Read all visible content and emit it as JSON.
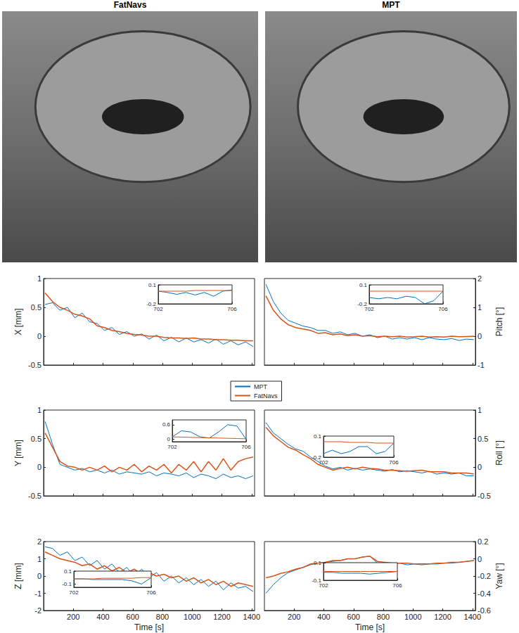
{
  "images": [
    {
      "title": "FatNavs"
    },
    {
      "title": "MPT"
    }
  ],
  "chart_data": [
    {
      "type": "line",
      "ylabel": "X [mm]",
      "legend": "center",
      "grid": false,
      "tick_labels": "y",
      "xlim": [
        0,
        1420
      ],
      "xticks": [
        200,
        400,
        600,
        800,
        1000,
        1200,
        1400
      ],
      "ylim": [
        -0.5,
        1
      ],
      "yticks": [
        -0.5,
        0,
        0.5,
        1
      ],
      "x": [
        10,
        60,
        110,
        160,
        210,
        260,
        310,
        360,
        410,
        460,
        510,
        560,
        610,
        660,
        710,
        760,
        810,
        860,
        910,
        960,
        1010,
        1060,
        1110,
        1160,
        1210,
        1260,
        1310,
        1360,
        1410
      ],
      "series": [
        {
          "name": "MPT",
          "color": "#0072BD",
          "values": [
            0.55,
            0.58,
            0.45,
            0.5,
            0.32,
            0.4,
            0.25,
            0.22,
            0.1,
            0.15,
            0.03,
            0.08,
            0.0,
            0.04,
            -0.05,
            0.02,
            -0.08,
            -0.02,
            -0.1,
            -0.03,
            -0.1,
            -0.06,
            -0.12,
            -0.05,
            -0.14,
            -0.08,
            -0.15,
            -0.1,
            -0.18
          ]
        },
        {
          "name": "FatNavs",
          "color": "#D95319",
          "values": [
            0.75,
            0.6,
            0.5,
            0.45,
            0.38,
            0.35,
            0.3,
            0.18,
            0.15,
            0.1,
            0.08,
            0.05,
            0.03,
            0.02,
            0.0,
            0.0,
            -0.02,
            -0.03,
            -0.03,
            -0.04,
            -0.03,
            -0.05,
            -0.05,
            -0.06,
            -0.06,
            -0.07,
            -0.07,
            -0.08,
            -0.08
          ]
        }
      ],
      "inset": {
        "xlim": [
          702,
          706
        ],
        "xticks": [
          702,
          706
        ],
        "ylim": [
          -0.2,
          0.1
        ],
        "yticks": [
          -0.2,
          0.1
        ],
        "x": [
          702,
          702.5,
          703,
          703.5,
          704,
          704.5,
          705,
          705.5,
          706
        ],
        "series": [
          {
            "name": "MPT",
            "color": "#0072BD",
            "values": [
              0.0,
              -0.02,
              -0.05,
              -0.02,
              -0.06,
              -0.02,
              -0.08,
              0.0,
              0.02
            ]
          },
          {
            "name": "FatNavs",
            "color": "#D95319",
            "values": [
              0.0,
              0.0,
              0.0,
              0.0,
              0.01,
              0.01,
              0.01,
              0.01,
              0.01
            ]
          }
        ]
      }
    },
    {
      "type": "line",
      "ylabel": "Pitch [°]",
      "grid": false,
      "tick_labels": "y",
      "xlim": [
        0,
        1420
      ],
      "xticks": [
        200,
        400,
        600,
        800,
        1000,
        1200,
        1400
      ],
      "ylim": [
        -1,
        2
      ],
      "yticks": [
        -1,
        0,
        1,
        2
      ],
      "x": [
        10,
        60,
        110,
        160,
        210,
        260,
        310,
        360,
        410,
        460,
        510,
        560,
        610,
        660,
        710,
        760,
        810,
        860,
        910,
        960,
        1010,
        1060,
        1110,
        1160,
        1210,
        1260,
        1310,
        1360,
        1410
      ],
      "series": [
        {
          "name": "MPT",
          "color": "#0072BD",
          "values": [
            1.8,
            1.2,
            0.8,
            0.55,
            0.45,
            0.35,
            0.3,
            0.2,
            0.2,
            0.1,
            0.15,
            0.05,
            0.1,
            0.0,
            0.05,
            -0.05,
            0.0,
            -0.1,
            -0.05,
            -0.1,
            -0.05,
            -0.12,
            -0.05,
            -0.1,
            -0.12,
            -0.08,
            -0.15,
            -0.1,
            -0.12
          ]
        },
        {
          "name": "FatNavs",
          "color": "#D95319",
          "values": [
            1.4,
            0.9,
            0.6,
            0.4,
            0.3,
            0.25,
            0.2,
            0.1,
            0.12,
            0.05,
            0.08,
            0.02,
            0.05,
            0.0,
            0.02,
            -0.02,
            0.0,
            -0.02,
            0.0,
            -0.03,
            -0.02,
            0.0,
            -0.03,
            -0.02,
            -0.03,
            0.0,
            -0.02,
            -0.01,
            0.0
          ]
        }
      ],
      "inset": {
        "xlim": [
          702,
          706
        ],
        "xticks": [
          702,
          706
        ],
        "ylim": [
          -0.2,
          0.1
        ],
        "yticks": [
          -0.2,
          0.1
        ],
        "x": [
          702,
          702.5,
          703,
          703.5,
          704,
          704.5,
          705,
          705.5,
          706
        ],
        "series": [
          {
            "name": "MPT",
            "color": "#0072BD",
            "values": [
              -0.1,
              -0.12,
              -0.1,
              -0.12,
              -0.08,
              -0.1,
              -0.2,
              -0.15,
              0.0
            ]
          },
          {
            "name": "FatNavs",
            "color": "#D95319",
            "values": [
              0.0,
              0.0,
              0.0,
              0.0,
              0.0,
              0.0,
              0.0,
              0.0,
              0.0
            ]
          }
        ]
      }
    },
    {
      "type": "line",
      "ylabel": "Y [mm]",
      "grid": false,
      "tick_labels": "y",
      "xlim": [
        0,
        1420
      ],
      "xticks": [
        200,
        400,
        600,
        800,
        1000,
        1200,
        1400
      ],
      "ylim": [
        -0.5,
        1
      ],
      "yticks": [
        -0.5,
        0,
        0.5,
        1
      ],
      "x": [
        10,
        60,
        110,
        160,
        210,
        260,
        310,
        360,
        410,
        460,
        510,
        560,
        610,
        660,
        710,
        760,
        810,
        860,
        910,
        960,
        1010,
        1060,
        1110,
        1160,
        1210,
        1260,
        1310,
        1360,
        1410
      ],
      "series": [
        {
          "name": "MPT",
          "color": "#0072BD",
          "values": [
            0.8,
            0.4,
            0.05,
            0.0,
            -0.05,
            -0.02,
            -0.08,
            -0.05,
            -0.1,
            -0.05,
            -0.12,
            -0.08,
            -0.1,
            -0.12,
            -0.08,
            -0.15,
            -0.1,
            -0.12,
            -0.15,
            -0.1,
            -0.18,
            -0.12,
            -0.15,
            -0.2,
            -0.12,
            -0.18,
            -0.15,
            -0.2,
            -0.15
          ]
        },
        {
          "name": "FatNavs",
          "color": "#D95319",
          "values": [
            0.6,
            0.35,
            0.1,
            0.02,
            0.0,
            -0.05,
            0.0,
            -0.05,
            0.02,
            -0.08,
            0.0,
            -0.05,
            0.05,
            -0.08,
            0.02,
            -0.05,
            0.05,
            -0.1,
            0.05,
            -0.05,
            0.1,
            -0.08,
            0.1,
            -0.05,
            0.15,
            -0.05,
            0.1,
            0.15,
            0.18
          ]
        }
      ],
      "inset": {
        "xlim": [
          702,
          706
        ],
        "xticks": [
          702,
          706
        ],
        "ylim": [
          -0.1,
          0.8
        ],
        "yticks": [
          0,
          0.6
        ],
        "x": [
          702,
          702.5,
          703,
          703.5,
          704,
          704.5,
          705,
          705.5,
          706
        ],
        "series": [
          {
            "name": "MPT",
            "color": "#0072BD",
            "values": [
              0.1,
              0.35,
              0.3,
              0.1,
              0.05,
              0.3,
              0.6,
              0.55,
              0.0
            ]
          },
          {
            "name": "FatNavs",
            "color": "#D95319",
            "values": [
              0.1,
              0.09,
              0.08,
              0.07,
              0.06,
              0.05,
              0.04,
              0.03,
              0.02
            ]
          }
        ]
      }
    },
    {
      "type": "line",
      "ylabel": "Roll [°]",
      "grid": false,
      "tick_labels": "y",
      "xlim": [
        0,
        1420
      ],
      "xticks": [
        200,
        400,
        600,
        800,
        1000,
        1200,
        1400
      ],
      "ylim": [
        -0.5,
        1
      ],
      "yticks": [
        -0.5,
        0,
        0.5,
        1
      ],
      "x": [
        10,
        60,
        110,
        160,
        210,
        260,
        310,
        360,
        410,
        460,
        510,
        560,
        610,
        660,
        710,
        760,
        810,
        860,
        910,
        960,
        1010,
        1060,
        1110,
        1160,
        1210,
        1260,
        1310,
        1360,
        1410
      ],
      "series": [
        {
          "name": "MPT",
          "color": "#0072BD",
          "values": [
            0.78,
            0.6,
            0.5,
            0.4,
            0.32,
            0.28,
            0.18,
            0.1,
            0.02,
            -0.03,
            0.0,
            -0.05,
            -0.02,
            -0.05,
            -0.03,
            -0.05,
            -0.07,
            -0.04,
            -0.08,
            -0.06,
            -0.08,
            -0.1,
            -0.07,
            -0.12,
            -0.1,
            -0.12,
            -0.1,
            -0.15,
            -0.15
          ]
        },
        {
          "name": "FatNavs",
          "color": "#D95319",
          "values": [
            0.7,
            0.55,
            0.45,
            0.35,
            0.3,
            0.22,
            0.15,
            0.05,
            0.0,
            -0.05,
            -0.02,
            0.0,
            -0.03,
            0.0,
            -0.02,
            -0.03,
            -0.05,
            -0.05,
            -0.06,
            -0.07,
            -0.06,
            -0.05,
            -0.08,
            -0.08,
            -0.08,
            -0.1,
            -0.1,
            -0.1,
            -0.12
          ]
        }
      ],
      "inset": {
        "xlim": [
          702,
          706
        ],
        "xticks": [
          702,
          706
        ],
        "ylim": [
          -0.2,
          0.1
        ],
        "yticks": [
          -0.2,
          0.1
        ],
        "x": [
          702,
          702.5,
          703,
          703.5,
          704,
          704.5,
          705,
          705.5,
          706
        ],
        "series": [
          {
            "name": "MPT",
            "color": "#0072BD",
            "values": [
              -0.15,
              -0.1,
              -0.15,
              -0.12,
              -0.05,
              -0.05,
              -0.15,
              -0.12,
              0.0
            ]
          },
          {
            "name": "FatNavs",
            "color": "#D95319",
            "values": [
              0.02,
              0.02,
              0.02,
              0.01,
              0.01,
              0.01,
              0.0,
              0.0,
              0.0
            ]
          }
        ]
      }
    },
    {
      "type": "line",
      "ylabel": "Z [mm]",
      "xlabel": "Time [s]",
      "grid": false,
      "xlim": [
        0,
        1420
      ],
      "xticks": [
        200,
        400,
        600,
        800,
        1000,
        1200,
        1400
      ],
      "ylim": [
        -2,
        2
      ],
      "yticks": [
        -2,
        -1,
        0,
        1,
        2
      ],
      "x": [
        10,
        60,
        110,
        160,
        210,
        260,
        310,
        360,
        410,
        460,
        510,
        560,
        610,
        660,
        710,
        760,
        810,
        860,
        910,
        960,
        1010,
        1060,
        1110,
        1160,
        1210,
        1260,
        1310,
        1360,
        1410
      ],
      "series": [
        {
          "name": "MPT",
          "color": "#0072BD",
          "values": [
            1.7,
            1.6,
            1.2,
            1.4,
            0.9,
            1.1,
            0.6,
            0.9,
            0.4,
            0.7,
            0.2,
            0.5,
            0.0,
            0.4,
            -0.1,
            0.2,
            -0.3,
            0.0,
            -0.4,
            -0.1,
            -0.5,
            -0.2,
            -0.6,
            -0.3,
            -0.8,
            -0.4,
            -0.7,
            -0.6,
            -0.9
          ]
        },
        {
          "name": "FatNavs",
          "color": "#D95319",
          "values": [
            1.4,
            1.2,
            1.0,
            0.9,
            0.8,
            0.6,
            0.7,
            0.4,
            0.6,
            0.3,
            0.5,
            0.2,
            0.4,
            0.1,
            0.2,
            0.0,
            0.1,
            -0.1,
            0.0,
            -0.3,
            -0.1,
            -0.4,
            -0.2,
            -0.5,
            -0.3,
            -0.6,
            -0.4,
            -0.5,
            -0.6
          ]
        }
      ],
      "inset": {
        "xlim": [
          702,
          706
        ],
        "xticks": [
          702,
          706
        ],
        "ylim": [
          -0.15,
          0.1
        ],
        "yticks": [
          -0.1,
          0.1
        ],
        "x": [
          702,
          702.5,
          703,
          703.5,
          704,
          704.5,
          705,
          705.5,
          706
        ],
        "series": [
          {
            "name": "MPT",
            "color": "#0072BD",
            "values": [
              -0.02,
              -0.02,
              -0.03,
              -0.03,
              -0.03,
              -0.03,
              -0.05,
              -0.1,
              0.0
            ]
          },
          {
            "name": "FatNavs",
            "color": "#D95319",
            "values": [
              -0.02,
              -0.02,
              -0.02,
              -0.01,
              -0.01,
              -0.01,
              -0.01,
              0.0,
              0.0
            ]
          }
        ]
      }
    },
    {
      "type": "line",
      "ylabel": "Yaw [°]",
      "xlabel": "Time [s]",
      "grid": false,
      "xlim": [
        0,
        1420
      ],
      "xticks": [
        200,
        400,
        600,
        800,
        1000,
        1200,
        1400
      ],
      "ylim": [
        -0.6,
        0.2
      ],
      "yticks": [
        -0.6,
        -0.4,
        -0.2,
        0,
        0.2
      ],
      "x": [
        10,
        60,
        110,
        160,
        210,
        260,
        310,
        360,
        410,
        460,
        510,
        560,
        610,
        660,
        710,
        760,
        810,
        860,
        910,
        960,
        1010,
        1060,
        1110,
        1160,
        1210,
        1260,
        1310,
        1360,
        1410
      ],
      "series": [
        {
          "name": "MPT",
          "color": "#0072BD",
          "values": [
            -0.4,
            -0.3,
            -0.22,
            -0.16,
            -0.13,
            -0.1,
            -0.07,
            -0.05,
            -0.04,
            -0.03,
            -0.02,
            0.0,
            0.0,
            0.02,
            0.03,
            -0.05,
            -0.05,
            -0.06,
            -0.05,
            -0.07,
            -0.06,
            -0.07,
            -0.06,
            -0.06,
            -0.05,
            -0.05,
            -0.04,
            -0.03,
            -0.02
          ]
        },
        {
          "name": "FatNavs",
          "color": "#D95319",
          "values": [
            -0.22,
            -0.2,
            -0.17,
            -0.15,
            -0.12,
            -0.1,
            -0.06,
            -0.05,
            -0.04,
            -0.02,
            -0.02,
            0.0,
            0.0,
            0.02,
            0.03,
            -0.03,
            -0.04,
            -0.05,
            -0.05,
            -0.05,
            -0.06,
            -0.06,
            -0.06,
            -0.05,
            -0.05,
            -0.04,
            -0.04,
            -0.03,
            -0.02
          ]
        }
      ],
      "inset": {
        "xlim": [
          702,
          706
        ],
        "xticks": [
          702,
          706
        ],
        "ylim": [
          -0.1,
          0.1
        ],
        "yticks": [
          -0.1,
          0.1
        ],
        "x": [
          702,
          702.5,
          703,
          703.5,
          704,
          704.5,
          705,
          705.5,
          706
        ],
        "series": [
          {
            "name": "MPT",
            "color": "#0072BD",
            "values": [
              -0.01,
              -0.01,
              -0.02,
              -0.02,
              -0.02,
              -0.03,
              -0.02,
              -0.01,
              0.0
            ]
          },
          {
            "name": "FatNavs",
            "color": "#D95319",
            "values": [
              0.0,
              0.0,
              0.0,
              0.0,
              0.0,
              0.0,
              0.0,
              0.0,
              0.0
            ]
          }
        ]
      }
    }
  ]
}
